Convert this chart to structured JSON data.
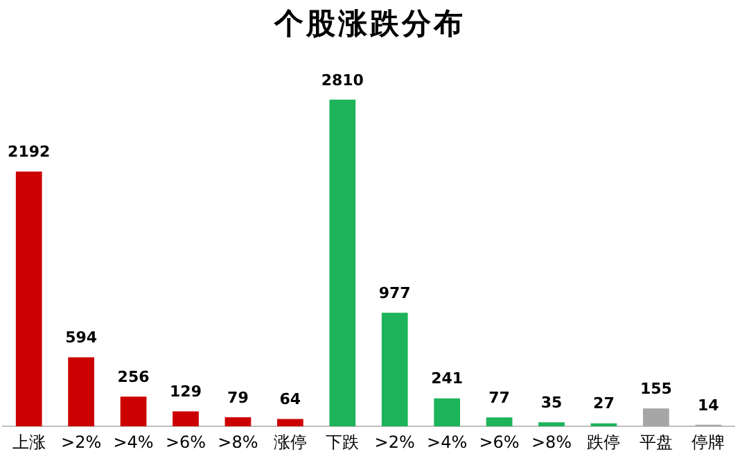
{
  "chart_data": {
    "type": "bar",
    "title": "个股涨跌分布",
    "categories": [
      "上涨",
      ">2%",
      ">4%",
      ">6%",
      ">8%",
      "涨停",
      "下跌",
      ">2%",
      ">4%",
      ">6%",
      ">8%",
      "跌停",
      "平盘",
      "停牌"
    ],
    "values": [
      2192,
      594,
      256,
      129,
      79,
      64,
      2810,
      977,
      241,
      77,
      35,
      27,
      155,
      14
    ],
    "colors": [
      "#cc0000",
      "#cc0000",
      "#cc0000",
      "#cc0000",
      "#cc0000",
      "#cc0000",
      "#1cb35a",
      "#1cb35a",
      "#1cb35a",
      "#1cb35a",
      "#1cb35a",
      "#1cb35a",
      "#a6a6a6",
      "#a6a6a6"
    ],
    "data_labels": true,
    "grid": false,
    "legend": false
  }
}
